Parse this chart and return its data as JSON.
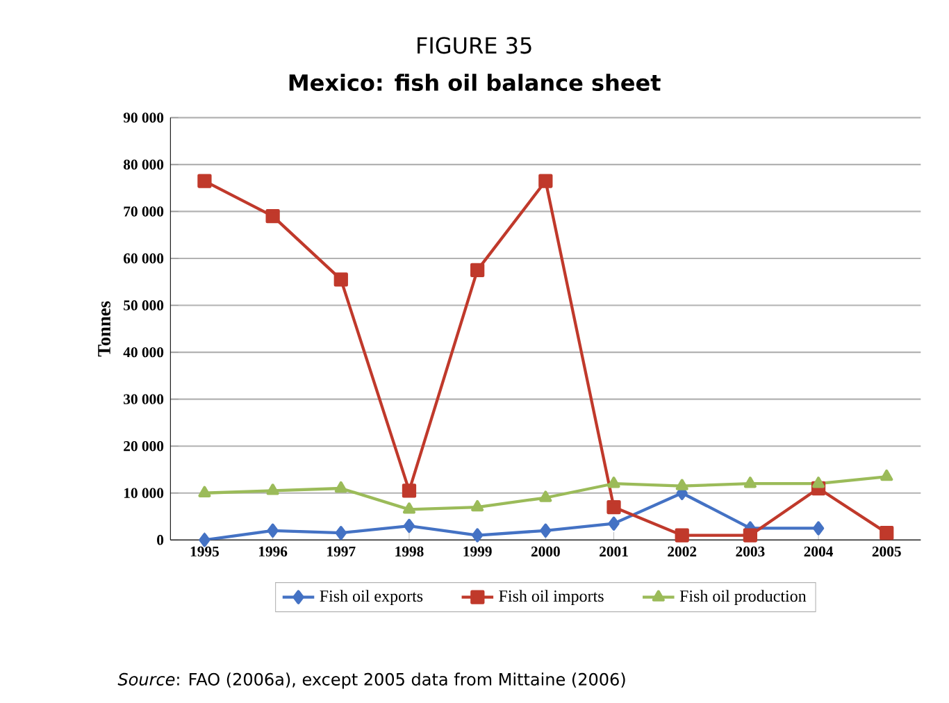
{
  "chart_data": {
    "type": "line",
    "title": "FIGURE 35",
    "subtitle": "Mexico: fish oil balance sheet",
    "ylabel": "Tonnes",
    "categories": [
      "1995",
      "1996",
      "1997",
      "1998",
      "1999",
      "2000",
      "2001",
      "2002",
      "2003",
      "2004",
      "2005"
    ],
    "series": [
      {
        "name": "Fish oil exports",
        "color": "#4472c4",
        "marker": "diamond",
        "values": [
          0,
          2000,
          1500,
          3000,
          1000,
          2000,
          3500,
          10000,
          2500,
          2500,
          null
        ]
      },
      {
        "name": "Fish oil imports",
        "color": "#c0392b",
        "marker": "square",
        "values": [
          76500,
          69000,
          55500,
          10500,
          57500,
          76500,
          7000,
          1000,
          1000,
          11000,
          1500
        ]
      },
      {
        "name": "Fish oil production",
        "color": "#9bbb59",
        "marker": "triangle",
        "values": [
          10000,
          10500,
          11000,
          6500,
          7000,
          9000,
          12000,
          11500,
          12000,
          12000,
          13500
        ]
      }
    ],
    "ylim": [
      0,
      90000
    ],
    "yticks": [
      {
        "value": 0,
        "label": "0"
      },
      {
        "value": 10000,
        "label": "10 000"
      },
      {
        "value": 20000,
        "label": "20 000"
      },
      {
        "value": 30000,
        "label": "30 000"
      },
      {
        "value": 40000,
        "label": "40 000"
      },
      {
        "value": 50000,
        "label": "50 000"
      },
      {
        "value": 60000,
        "label": "60 000"
      },
      {
        "value": 70000,
        "label": "70 000"
      },
      {
        "value": 80000,
        "label": "80 000"
      },
      {
        "value": 90000,
        "label": "90 000"
      }
    ],
    "grid": "y",
    "legend": "bottom",
    "line_style": "solid",
    "annotations": [
      "*Source*: FAO (2006a), except 2005 data from Mittaine (2006)"
    ]
  }
}
